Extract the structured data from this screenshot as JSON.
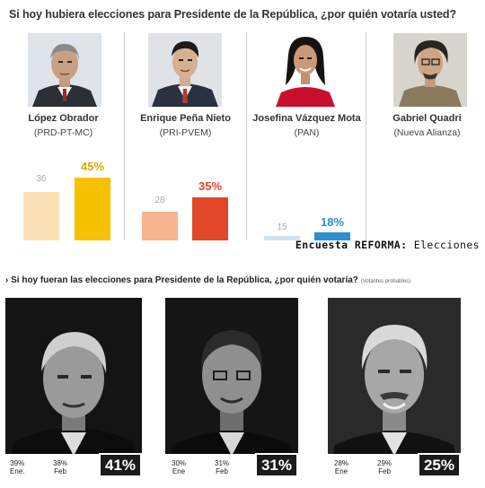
{
  "top": {
    "question": "Si hoy hubiera elecciones para Presidente de la República, ¿por quién votaría usted?",
    "source_prefix": "Encuesta ",
    "source_brand": "REFORMA:",
    "source_suffix": " Elecciones",
    "candidates": [
      {
        "name": "López Obrador",
        "party": "(PRD-PT-MC)",
        "prev": "36",
        "curr": "45%"
      },
      {
        "name": "Enrique Peña Nieto",
        "party": "(PRI-PVEM)",
        "prev": "28",
        "curr": "35%"
      },
      {
        "name": "Josefina Vázquez Mota",
        "party": "(PAN)",
        "prev": "15",
        "curr": "18%"
      },
      {
        "name": "Gabriel Quadri",
        "party": "(Nueva Alianza)",
        "prev": "",
        "curr": ""
      }
    ]
  },
  "bottom": {
    "question": "› Si hoy fueran las elecciones para Presidente de la República, ¿por quién votaría?",
    "note": "(Votantes probables)",
    "cards": [
      {
        "ene": "39%",
        "ene_label": "Ene.",
        "feb": "38%",
        "feb_label": "Feb",
        "big": "41%"
      },
      {
        "ene": "30%",
        "ene_label": "Ene",
        "feb": "31%",
        "feb_label": "Feb",
        "big": "31%"
      },
      {
        "ene": "28%",
        "ene_label": "Ene",
        "feb": "29%",
        "feb_label": "Feb",
        "big": "25%"
      }
    ]
  },
  "colors": {
    "prev_bar": "#fde2b8",
    "c1_bar": "#f6c100",
    "c2_prev_bar": "#f6b48f",
    "c2_bar": "#e2472a",
    "c3_prev_bar": "#cfe3f2",
    "c3_bar": "#2d8fd0",
    "c1_label": "#d9a800",
    "c2_label": "#d9472c",
    "c3_label": "#2d8fd0"
  },
  "chart_data": [
    {
      "type": "bar",
      "title": "Si hoy hubiera elecciones para Presidente de la República, ¿por quién votaría usted?",
      "categories": [
        "López Obrador",
        "Enrique Peña Nieto",
        "Josefina Vázquez Mota",
        "Gabriel Quadri"
      ],
      "series": [
        {
          "values": [
            36,
            28,
            15,
            null
          ]
        },
        {
          "values": [
            45,
            35,
            18,
            null
          ]
        }
      ],
      "ylim": [
        0,
        50
      ]
    },
    {
      "type": "table",
      "title": "Si hoy fueran las elecciones para Presidente de la República, ¿por quién votaría?",
      "columns": [
        "Ene.",
        "Feb",
        ""
      ],
      "rows": [
        [
          39,
          38,
          41
        ],
        [
          30,
          31,
          31
        ],
        [
          28,
          29,
          25
        ]
      ]
    }
  ]
}
